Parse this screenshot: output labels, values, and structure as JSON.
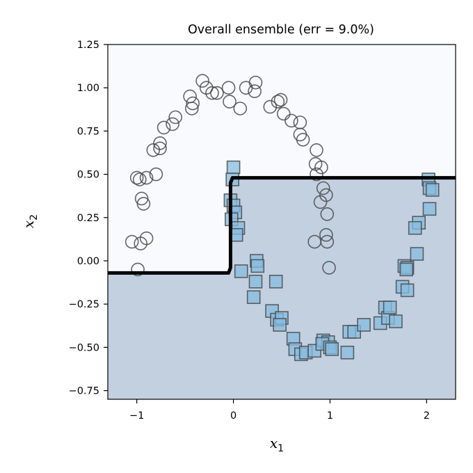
{
  "chart_data": {
    "type": "scatter",
    "title": "Overall ensemble (err = 9.0%)",
    "xlabel_main": "x",
    "xlabel_sub": "1",
    "ylabel_main": "x",
    "ylabel_sub": "2",
    "xlim": [
      -1.3,
      2.3
    ],
    "ylim": [
      -0.8,
      1.25
    ],
    "xticks": [
      -1,
      0,
      1,
      2
    ],
    "xtick_labels": [
      "−1",
      "0",
      "1",
      "2"
    ],
    "yticks": [
      1.25,
      1.0,
      0.75,
      0.5,
      0.25,
      0.0,
      -0.25,
      -0.5,
      -0.75
    ],
    "ytick_labels": [
      "1.25",
      "1.00",
      "0.75",
      "0.50",
      "0.25",
      "0.00",
      "−0.25",
      "−0.50",
      "−0.75"
    ],
    "grid": false,
    "colors": {
      "region_class0": "#f8fafd",
      "region_class1": "#c2d0e0",
      "square_fill": "#85bce0",
      "marker_edge": "#4a4a4a",
      "boundary": "#000000"
    },
    "decision_boundary": [
      [
        -1.3,
        -0.07
      ],
      [
        -0.05,
        -0.07
      ],
      [
        -0.03,
        -0.04
      ],
      [
        -0.03,
        0.45
      ],
      [
        -0.01,
        0.48
      ],
      [
        2.3,
        0.48
      ]
    ],
    "series": [
      {
        "marker": "circle",
        "points": [
          [
            -1.0,
            0.48
          ],
          [
            -0.97,
            0.47
          ],
          [
            -0.9,
            0.48
          ],
          [
            -0.8,
            0.5
          ],
          [
            -0.95,
            0.36
          ],
          [
            -0.93,
            0.33
          ],
          [
            -1.05,
            0.11
          ],
          [
            -0.96,
            0.1
          ],
          [
            -0.9,
            0.13
          ],
          [
            -0.99,
            -0.05
          ],
          [
            -0.83,
            0.64
          ],
          [
            -0.76,
            0.68
          ],
          [
            -0.76,
            0.65
          ],
          [
            -0.72,
            0.77
          ],
          [
            -0.63,
            0.79
          ],
          [
            -0.6,
            0.83
          ],
          [
            -0.45,
            0.95
          ],
          [
            -0.43,
            0.88
          ],
          [
            -0.42,
            0.91
          ],
          [
            -0.32,
            1.04
          ],
          [
            -0.28,
            1.0
          ],
          [
            -0.22,
            0.97
          ],
          [
            -0.17,
            0.97
          ],
          [
            -0.05,
            1.0
          ],
          [
            -0.04,
            0.92
          ],
          [
            0.07,
            0.88
          ],
          [
            0.13,
            1.0
          ],
          [
            0.22,
            0.98
          ],
          [
            0.23,
            1.03
          ],
          [
            0.38,
            0.89
          ],
          [
            0.46,
            0.92
          ],
          [
            0.49,
            0.93
          ],
          [
            0.52,
            0.85
          ],
          [
            0.6,
            0.81
          ],
          [
            0.69,
            0.8
          ],
          [
            0.69,
            0.73
          ],
          [
            0.72,
            0.7
          ],
          [
            0.86,
            0.64
          ],
          [
            0.85,
            0.56
          ],
          [
            0.86,
            0.5
          ],
          [
            0.91,
            0.54
          ],
          [
            0.93,
            0.42
          ],
          [
            0.96,
            0.38
          ],
          [
            0.9,
            0.34
          ],
          [
            0.97,
            0.27
          ],
          [
            0.84,
            0.11
          ],
          [
            0.96,
            0.15
          ],
          [
            0.97,
            0.11
          ],
          [
            0.99,
            -0.04
          ]
        ]
      },
      {
        "marker": "square",
        "points": [
          [
            0.0,
            0.54
          ],
          [
            -0.01,
            0.47
          ],
          [
            -0.03,
            0.35
          ],
          [
            0.0,
            0.32
          ],
          [
            0.02,
            0.28
          ],
          [
            -0.02,
            0.24
          ],
          [
            0.05,
            0.19
          ],
          [
            0.03,
            0.15
          ],
          [
            0.08,
            -0.06
          ],
          [
            0.24,
            0.0
          ],
          [
            0.25,
            -0.03
          ],
          [
            0.23,
            -0.12
          ],
          [
            0.21,
            -0.21
          ],
          [
            0.44,
            -0.12
          ],
          [
            0.4,
            -0.29
          ],
          [
            0.45,
            -0.34
          ],
          [
            0.5,
            -0.33
          ],
          [
            0.48,
            -0.37
          ],
          [
            0.62,
            -0.45
          ],
          [
            0.64,
            -0.51
          ],
          [
            0.7,
            -0.54
          ],
          [
            0.75,
            -0.53
          ],
          [
            0.84,
            -0.52
          ],
          [
            0.93,
            -0.46
          ],
          [
            0.98,
            -0.47
          ],
          [
            0.92,
            -0.48
          ],
          [
            1.0,
            -0.5
          ],
          [
            1.02,
            -0.51
          ],
          [
            1.2,
            -0.41
          ],
          [
            1.18,
            -0.53
          ],
          [
            1.25,
            -0.41
          ],
          [
            1.35,
            -0.37
          ],
          [
            1.52,
            -0.36
          ],
          [
            1.57,
            -0.27
          ],
          [
            1.6,
            -0.33
          ],
          [
            1.62,
            -0.27
          ],
          [
            1.68,
            -0.35
          ],
          [
            1.75,
            -0.15
          ],
          [
            1.8,
            -0.17
          ],
          [
            1.77,
            -0.03
          ],
          [
            1.8,
            -0.04
          ],
          [
            1.79,
            -0.05
          ],
          [
            1.9,
            0.04
          ],
          [
            1.92,
            0.22
          ],
          [
            1.88,
            0.19
          ],
          [
            2.03,
            0.3
          ],
          [
            2.02,
            0.47
          ],
          [
            2.03,
            0.42
          ],
          [
            2.06,
            0.41
          ]
        ]
      }
    ]
  }
}
